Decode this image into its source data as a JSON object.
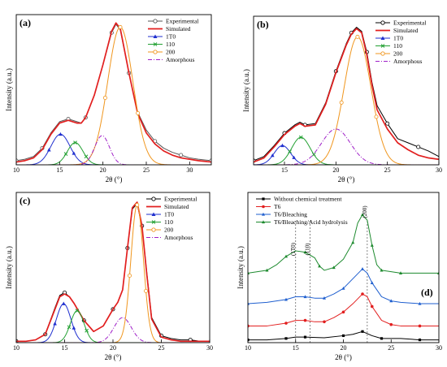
{
  "chart_data": [
    {
      "type": "line",
      "panel_label": "(a)",
      "xlabel": "2θ (°)",
      "ylabel": "Intensity (a.u.)",
      "xlim": [
        10,
        32.5
      ],
      "ylim": [
        0,
        1.08
      ],
      "xticks": [
        10,
        15,
        20,
        25,
        30
      ],
      "legend_position": "top-right",
      "legend": [
        "Experimental",
        "Simulated",
        "1T0",
        "110",
        "200",
        "Amorphous"
      ],
      "series": [
        {
          "name": "Experimental",
          "color": "#555555",
          "style": "line-open-circle",
          "x": [
            10,
            11,
            12,
            13,
            14,
            15,
            16,
            17,
            17.5,
            18,
            19,
            20,
            21,
            21.5,
            22,
            23,
            24,
            25,
            26,
            27,
            28,
            29,
            30,
            31,
            32.5
          ],
          "y": [
            0.03,
            0.04,
            0.06,
            0.12,
            0.23,
            0.31,
            0.33,
            0.31,
            0.3,
            0.34,
            0.5,
            0.72,
            0.95,
            1.01,
            0.97,
            0.66,
            0.38,
            0.25,
            0.17,
            0.12,
            0.09,
            0.07,
            0.05,
            0.04,
            0.03
          ]
        },
        {
          "name": "Simulated",
          "color": "#e21f1f",
          "style": "line",
          "x": [
            10,
            11,
            12,
            13,
            14,
            15,
            16,
            17,
            17.5,
            18,
            19,
            20,
            21,
            21.5,
            22,
            23,
            24,
            25,
            26,
            27,
            28,
            29,
            30,
            31,
            32.5
          ],
          "y": [
            0.02,
            0.03,
            0.05,
            0.11,
            0.22,
            0.3,
            0.32,
            0.3,
            0.3,
            0.34,
            0.5,
            0.72,
            0.96,
            1.02,
            0.98,
            0.66,
            0.37,
            0.23,
            0.15,
            0.1,
            0.07,
            0.05,
            0.04,
            0.03,
            0.02
          ]
        },
        {
          "name": "1T0",
          "color": "#1f2fcf",
          "style": "gaussian",
          "center": 15.1,
          "height": 0.22,
          "sigma": 1.1
        },
        {
          "name": "110",
          "color": "#22a032",
          "style": "gaussian",
          "center": 16.8,
          "height": 0.16,
          "sigma": 0.9
        },
        {
          "name": "200",
          "color": "#f0961e",
          "style": "gaussian",
          "center": 22.0,
          "height": 0.99,
          "sigma": 1.45
        },
        {
          "name": "Amorphous",
          "color": "#a020c8",
          "style": "gaussian-dashdot",
          "center": 19.9,
          "height": 0.21,
          "sigma": 0.85
        }
      ]
    },
    {
      "type": "line",
      "panel_label": "(b)",
      "xlabel": "2θ (°)",
      "ylabel": "Intensity (a.u.)",
      "xlim": [
        12,
        30
      ],
      "ylim": [
        0,
        1.08
      ],
      "xticks": [
        15,
        20,
        25,
        30
      ],
      "legend_position": "top-right",
      "legend": [
        "Experimental",
        "Simulated",
        "1T0",
        "110",
        "200",
        "Amorphous"
      ],
      "series": [
        {
          "name": "Experimental",
          "color": "#000000",
          "style": "line-open-circle",
          "x": [
            12,
            13,
            14,
            15,
            16,
            16.5,
            17,
            18,
            19,
            20,
            20.5,
            21,
            21.5,
            22,
            22.5,
            23,
            23.5,
            24,
            25,
            26,
            27,
            28,
            29,
            30
          ],
          "y": [
            0.03,
            0.06,
            0.14,
            0.23,
            0.29,
            0.31,
            0.29,
            0.3,
            0.45,
            0.68,
            0.78,
            0.88,
            0.96,
            1.0,
            0.97,
            0.82,
            0.6,
            0.43,
            0.3,
            0.19,
            0.16,
            0.13,
            0.1,
            0.06
          ]
        },
        {
          "name": "Simulated",
          "color": "#e21f1f",
          "style": "line",
          "x": [
            12,
            13,
            14,
            15,
            16,
            16.5,
            17,
            18,
            19,
            20,
            20.5,
            21,
            21.5,
            22,
            22.5,
            23,
            23.5,
            24,
            25,
            26,
            27,
            28,
            29,
            30
          ],
          "y": [
            0.02,
            0.05,
            0.13,
            0.22,
            0.28,
            0.3,
            0.28,
            0.29,
            0.44,
            0.67,
            0.77,
            0.87,
            0.95,
            0.99,
            0.96,
            0.8,
            0.58,
            0.4,
            0.26,
            0.16,
            0.11,
            0.07,
            0.05,
            0.04
          ]
        },
        {
          "name": "1T0",
          "color": "#1f2fcf",
          "style": "gaussian",
          "center": 14.8,
          "height": 0.14,
          "sigma": 0.8
        },
        {
          "name": "110",
          "color": "#22a032",
          "style": "gaussian",
          "center": 16.6,
          "height": 0.2,
          "sigma": 0.9
        },
        {
          "name": "200",
          "color": "#f0961e",
          "style": "gaussian",
          "center": 22.1,
          "height": 0.93,
          "sigma": 1.3
        },
        {
          "name": "Amorphous",
          "color": "#a020c8",
          "style": "gaussian-dashdot",
          "center": 20.0,
          "height": 0.26,
          "sigma": 1.4
        }
      ]
    },
    {
      "type": "line",
      "panel_label": "(c)",
      "xlabel": "2θ (°)",
      "ylabel": "Intensity (a.u.)",
      "xlim": [
        10,
        30
      ],
      "ylim": [
        0,
        1.08
      ],
      "xticks": [
        10,
        15,
        20,
        25,
        30
      ],
      "legend_position": "top-right",
      "legend": [
        "Experimental",
        "Simulated",
        "1T0",
        "110",
        "200",
        "Amorphous"
      ],
      "series": [
        {
          "name": "Experimental",
          "color": "#000000",
          "style": "line-open-circle",
          "x": [
            10,
            11,
            12,
            13,
            14,
            14.5,
            15,
            15.5,
            16,
            17,
            18,
            19,
            20,
            20.5,
            21,
            21.5,
            22,
            22.5,
            23,
            23.5,
            24,
            25,
            26,
            27,
            28,
            29,
            30
          ],
          "y": [
            0.01,
            0.01,
            0.02,
            0.06,
            0.25,
            0.34,
            0.36,
            0.33,
            0.28,
            0.16,
            0.08,
            0.12,
            0.24,
            0.29,
            0.38,
            0.68,
            0.96,
            1.0,
            0.84,
            0.5,
            0.18,
            0.05,
            0.03,
            0.02,
            0.02,
            0.01,
            0.01
          ]
        },
        {
          "name": "Simulated",
          "color": "#e21f1f",
          "style": "line",
          "x": [
            10,
            11,
            12,
            13,
            14,
            14.5,
            15,
            15.5,
            16,
            17,
            18,
            19,
            20,
            20.5,
            21,
            21.5,
            22,
            22.5,
            23,
            23.5,
            24,
            25,
            26,
            27,
            28,
            29,
            30
          ],
          "y": [
            0.01,
            0.01,
            0.02,
            0.06,
            0.24,
            0.33,
            0.35,
            0.33,
            0.28,
            0.16,
            0.08,
            0.12,
            0.24,
            0.29,
            0.38,
            0.68,
            0.97,
            1.01,
            0.84,
            0.49,
            0.17,
            0.04,
            0.02,
            0.01,
            0.01,
            0.01,
            0.01
          ]
        },
        {
          "name": "1T0",
          "color": "#1f2fcf",
          "style": "gaussian",
          "center": 14.9,
          "height": 0.28,
          "sigma": 0.75
        },
        {
          "name": "110",
          "color": "#22a032",
          "style": "gaussian",
          "center": 16.3,
          "height": 0.23,
          "sigma": 0.7
        },
        {
          "name": "200",
          "color": "#f0961e",
          "style": "gaussian",
          "center": 22.5,
          "height": 0.99,
          "sigma": 0.65
        },
        {
          "name": "Amorphous",
          "color": "#a020c8",
          "style": "gaussian-dashdot",
          "center": 21.0,
          "height": 0.18,
          "sigma": 0.9
        }
      ]
    },
    {
      "type": "line",
      "panel_label": "(d)",
      "xlabel": "2θ (°)",
      "ylabel": "Intensity (a.u.)",
      "xlim": [
        10,
        30
      ],
      "ylim": [
        0,
        1.08
      ],
      "xticks": [
        10,
        15,
        20,
        25,
        30
      ],
      "legend_position": "top-left",
      "legend": [
        "Without chemical treatment",
        "T6",
        "T6/Bleaching",
        "T6/Bleaching/Acid hydrolysis"
      ],
      "reference_lines": [
        {
          "x": 15.0,
          "label": "(1T0)"
        },
        {
          "x": 16.5,
          "label": "(110)"
        },
        {
          "x": 22.5,
          "label": "(200)"
        }
      ],
      "series": [
        {
          "name": "Without chemical treatment",
          "color": "#000000",
          "marker": "square",
          "x": [
            10,
            12,
            14,
            15,
            16,
            18,
            20,
            21,
            22,
            23,
            24,
            26,
            28,
            30
          ],
          "y": [
            0.02,
            0.02,
            0.03,
            0.04,
            0.04,
            0.035,
            0.05,
            0.06,
            0.08,
            0.05,
            0.03,
            0.03,
            0.02,
            0.02
          ]
        },
        {
          "name": "T6",
          "color": "#e21f1f",
          "marker": "circle",
          "x": [
            10,
            12,
            14,
            15,
            16,
            17,
            18,
            19,
            20,
            21,
            22,
            22.5,
            23,
            24,
            25,
            26,
            28,
            30
          ],
          "y": [
            0.12,
            0.12,
            0.14,
            0.16,
            0.16,
            0.15,
            0.15,
            0.18,
            0.22,
            0.28,
            0.35,
            0.33,
            0.26,
            0.16,
            0.13,
            0.12,
            0.12,
            0.12
          ]
        },
        {
          "name": "T6/Bleaching",
          "color": "#1f5fcf",
          "marker": "triangle",
          "x": [
            10,
            12,
            14,
            15,
            16,
            17,
            18,
            19,
            20,
            21,
            22,
            22.5,
            23,
            24,
            25,
            26,
            28,
            30
          ],
          "y": [
            0.28,
            0.29,
            0.31,
            0.33,
            0.33,
            0.32,
            0.32,
            0.35,
            0.39,
            0.46,
            0.53,
            0.5,
            0.43,
            0.33,
            0.3,
            0.29,
            0.28,
            0.28
          ]
        },
        {
          "name": "T6/Bleaching/Acid hydrolysis",
          "color": "#1d8a2e",
          "marker": "triangle",
          "x": [
            10,
            11,
            12,
            13,
            14,
            15,
            16,
            17,
            17.5,
            18,
            19,
            20,
            21,
            21.5,
            22,
            22.5,
            23,
            23.5,
            24,
            25,
            26,
            28,
            30
          ],
          "y": [
            0.5,
            0.51,
            0.52,
            0.56,
            0.62,
            0.66,
            0.65,
            0.61,
            0.55,
            0.52,
            0.54,
            0.6,
            0.72,
            0.86,
            0.92,
            0.88,
            0.7,
            0.56,
            0.52,
            0.51,
            0.5,
            0.5,
            0.5
          ]
        }
      ]
    }
  ]
}
